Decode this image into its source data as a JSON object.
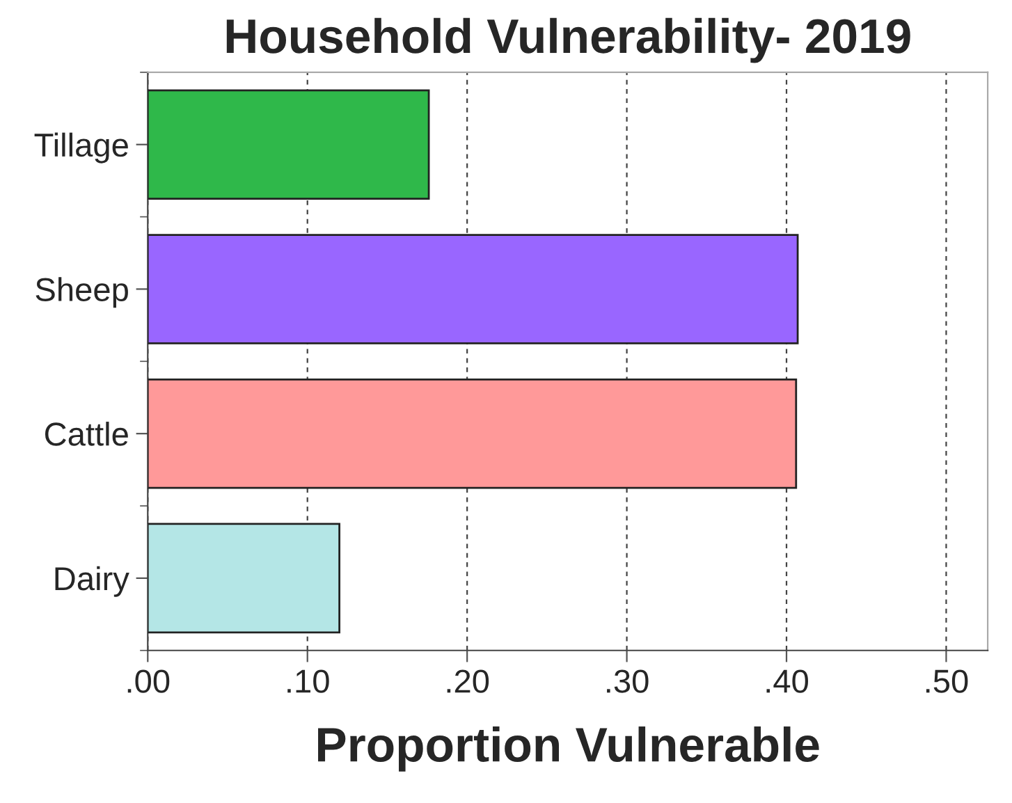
{
  "chart_data": {
    "type": "bar",
    "orientation": "horizontal",
    "title": "Household Vulnerability- 2019",
    "xlabel": "Proportion Vulnerable",
    "categories": [
      "Tillage",
      "Sheep",
      "Cattle",
      "Dairy"
    ],
    "values": [
      0.176,
      0.407,
      0.406,
      0.12
    ],
    "colors": [
      "#2fb84a",
      "#9966ff",
      "#ff9999",
      "#b4e6e6"
    ],
    "xlim": [
      0,
      0.526
    ],
    "xticks": [
      {
        "value": 0,
        "label": ".00"
      },
      {
        "value": 0.1,
        "label": ".10"
      },
      {
        "value": 0.2,
        "label": ".20"
      },
      {
        "value": 0.3,
        "label": ".30"
      },
      {
        "value": 0.4,
        "label": ".40"
      },
      {
        "value": 0.5,
        "label": ".50"
      }
    ],
    "grid": "x",
    "legend": false
  }
}
